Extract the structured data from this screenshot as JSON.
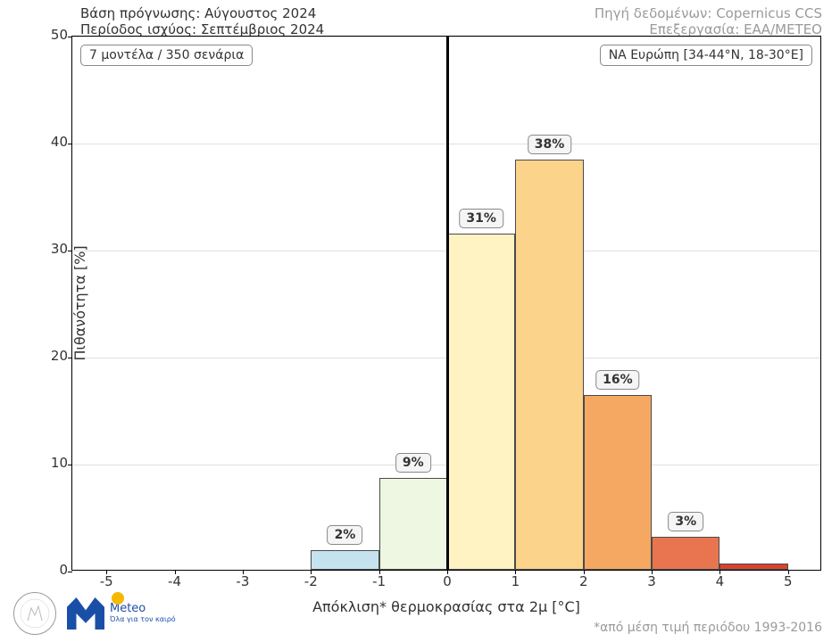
{
  "header": {
    "left_line1": "Βάση πρόγνωσης: Αύγουστος 2024",
    "left_line2": "Περίοδος ισχύος: Σεπτέμβριος 2024",
    "right_line1": "Πηγή δεδομένων: Copernicus CCS",
    "right_line2": "Επεξεργασία: ΕΑΑ/METEO"
  },
  "info_left": "7 μοντέλα / 350 σενάρια",
  "info_right": "ΝΑ Ευρώπη [34-44°N, 18-30°E]",
  "chart": {
    "type": "bar",
    "x_label": "Απόκλιση* θερμοκρασίας στα 2μ [°C]",
    "y_label": "Πιθανότητα [%]",
    "x_ticks": [
      -5,
      -4,
      -3,
      -2,
      -1,
      0,
      1,
      2,
      3,
      4,
      5
    ],
    "y_ticks": [
      0,
      10,
      20,
      30,
      40,
      50
    ],
    "xlim": [
      -5.5,
      5.5
    ],
    "ylim": [
      0,
      50
    ],
    "background": "#ffffff",
    "grid_color": "#e0e0e0",
    "border_color": "#000000",
    "bar_border_color": "#4a4a4a",
    "center_line_x": 0,
    "bars": [
      {
        "x_start": -2,
        "x_end": -1,
        "value": 1.8,
        "label": "2%",
        "color": "#c6e2ef"
      },
      {
        "x_start": -1,
        "x_end": 0,
        "value": 8.6,
        "label": "9%",
        "color": "#eef7e1"
      },
      {
        "x_start": 0,
        "x_end": 1,
        "value": 31.4,
        "label": "31%",
        "color": "#fff3c3"
      },
      {
        "x_start": 1,
        "x_end": 2,
        "value": 38.3,
        "label": "38%",
        "color": "#fbd38a"
      },
      {
        "x_start": 2,
        "x_end": 3,
        "value": 16.3,
        "label": "16%",
        "color": "#f5a862"
      },
      {
        "x_start": 3,
        "x_end": 4,
        "value": 3.1,
        "label": "3%",
        "color": "#e8754f"
      },
      {
        "x_start": 4,
        "x_end": 5,
        "value": 0.6,
        "label": "",
        "color": "#d9432f"
      }
    ],
    "label_fontsize": 14,
    "axis_fontsize": 16,
    "tick_fontsize": 15
  },
  "footnote": "*από μέση τιμή περιόδου 1993-2016",
  "logo": {
    "meteo_name": "Meteo",
    "meteo_tag": "Όλα για\nτον καιρό"
  }
}
